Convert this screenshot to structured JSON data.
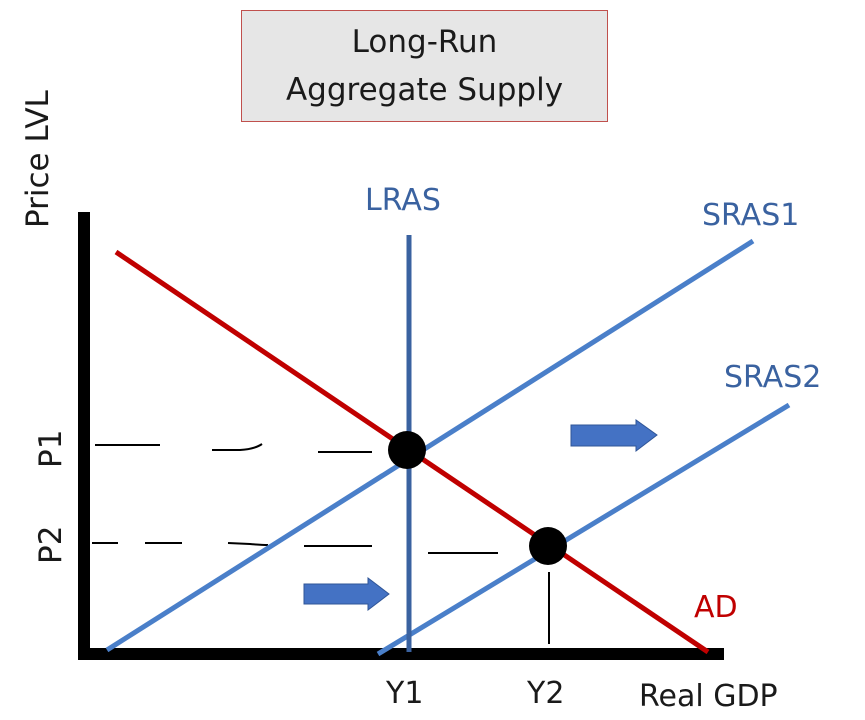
{
  "title": {
    "line1": "Long-Run",
    "line2": "Aggregate Supply"
  },
  "axes": {
    "y_label": "Price LVL",
    "x_label": "Real GDP"
  },
  "curves": {
    "lras": {
      "label": "LRAS",
      "color": "#3a62a0"
    },
    "sras1": {
      "label": "SRAS1",
      "color": "#4a7fc9"
    },
    "sras2": {
      "label": "SRAS2",
      "color": "#4a7fc9"
    },
    "ad": {
      "label": "AD",
      "color": "#c00000"
    }
  },
  "y_ticks": {
    "p1": "P1",
    "p2": "P2"
  },
  "x_ticks": {
    "y1": "Y1",
    "y2": "Y2"
  },
  "arrows": [
    {
      "name": "shift-right-arrow-upper",
      "direction": "right",
      "color": "#4472c4"
    },
    {
      "name": "shift-right-arrow-lower",
      "direction": "right",
      "color": "#4472c4"
    }
  ],
  "equilibrium_points": [
    "P1 at Y1",
    "P2 at Y2"
  ]
}
